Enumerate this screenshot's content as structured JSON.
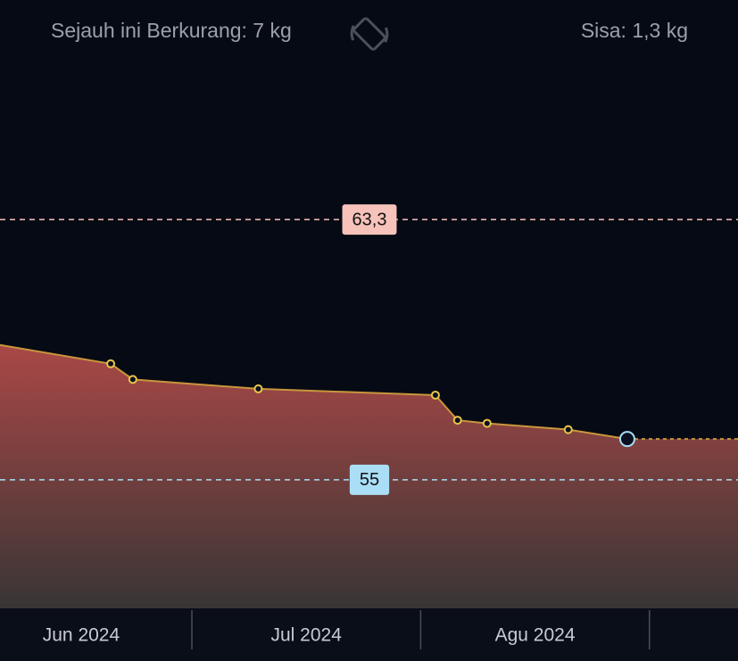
{
  "header": {
    "lost": "Sejauh ini Berkurang: 7 kg",
    "remaining": "Sisa: 1,3 kg"
  },
  "chart_data": {
    "type": "area",
    "x": [
      157,
      172,
      175,
      192,
      216,
      219,
      223,
      234,
      242
    ],
    "values": [
      59.3,
      58.7,
      58.2,
      57.9,
      57.7,
      56.9,
      56.8,
      56.6,
      56.3
    ],
    "xlim": [
      157,
      257
    ],
    "ylim": [
      50.9,
      70.3
    ],
    "months": [
      "Jun 2024",
      "Jul 2024",
      "Agu 2024"
    ],
    "month_edges": [
      153,
      183,
      214,
      245
    ],
    "line_color": "#c9963c",
    "reference_lines": [
      {
        "value": 63.3,
        "label": "63,3",
        "color": "#f6c2b9"
      },
      {
        "value": 55,
        "label": "55",
        "color": "#a9def6"
      }
    ]
  }
}
